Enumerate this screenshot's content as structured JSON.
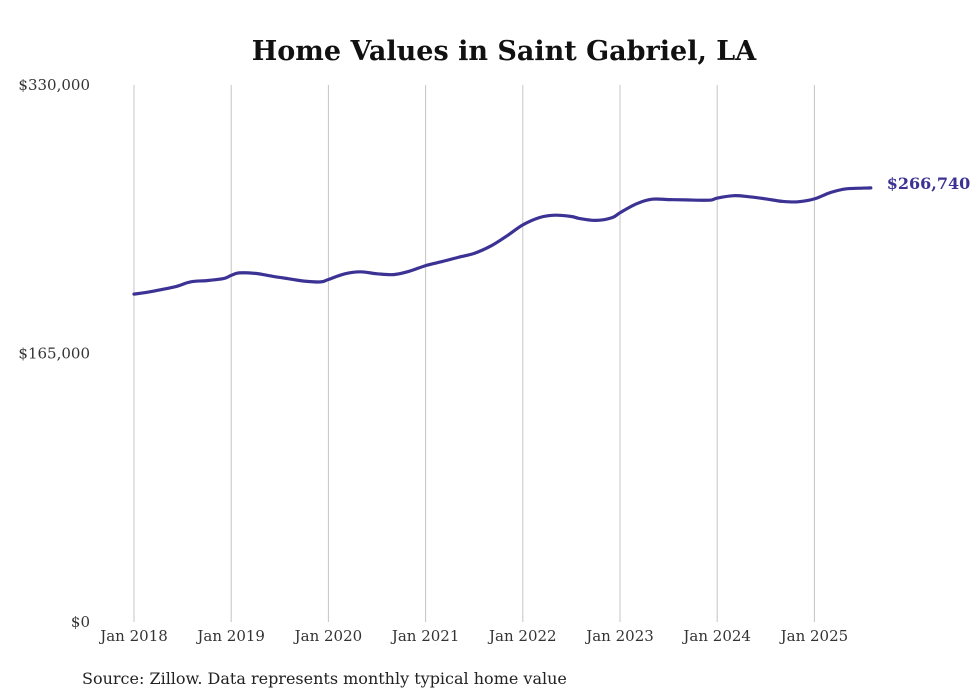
{
  "chart_data": {
    "type": "line",
    "title": "Home Values in Saint Gabriel, LA",
    "xlabel": "",
    "ylabel": "",
    "ylim": [
      0,
      330000
    ],
    "yticks": [
      "$330,000",
      "$165,000",
      "$0"
    ],
    "ytick_values": [
      330000,
      165000,
      0
    ],
    "xticks": [
      "Jan 2018",
      "Jan 2019",
      "Jan 2020",
      "Jan 2021",
      "Jan 2022",
      "Jan 2023",
      "Jan 2024",
      "Jan 2025"
    ],
    "xtick_values": [
      2018,
      2019,
      2020,
      2021,
      2022,
      2023,
      2024,
      2025
    ],
    "grid": "vertical",
    "series": [
      {
        "color": "#3b3294",
        "points": [
          [
            2018.0,
            201500
          ],
          [
            2018.17,
            203000
          ],
          [
            2018.42,
            206000
          ],
          [
            2018.58,
            209000
          ],
          [
            2018.75,
            209800
          ],
          [
            2018.92,
            211000
          ],
          [
            2019.0,
            213000
          ],
          [
            2019.08,
            214500
          ],
          [
            2019.25,
            214200
          ],
          [
            2019.42,
            212500
          ],
          [
            2019.58,
            211000
          ],
          [
            2019.75,
            209500
          ],
          [
            2019.92,
            209000
          ],
          [
            2020.0,
            210500
          ],
          [
            2020.17,
            214000
          ],
          [
            2020.33,
            215200
          ],
          [
            2020.5,
            214000
          ],
          [
            2020.67,
            213500
          ],
          [
            2020.83,
            215500
          ],
          [
            2021.0,
            219000
          ],
          [
            2021.17,
            221500
          ],
          [
            2021.33,
            224000
          ],
          [
            2021.5,
            226500
          ],
          [
            2021.67,
            231000
          ],
          [
            2021.83,
            237000
          ],
          [
            2022.0,
            244000
          ],
          [
            2022.17,
            248500
          ],
          [
            2022.33,
            250000
          ],
          [
            2022.5,
            249200
          ],
          [
            2022.58,
            248000
          ],
          [
            2022.75,
            246800
          ],
          [
            2022.92,
            248500
          ],
          [
            2023.0,
            251500
          ],
          [
            2023.17,
            257000
          ],
          [
            2023.33,
            259800
          ],
          [
            2023.5,
            259600
          ],
          [
            2023.67,
            259400
          ],
          [
            2023.92,
            259200
          ],
          [
            2024.0,
            260500
          ],
          [
            2024.17,
            262000
          ],
          [
            2024.33,
            261300
          ],
          [
            2024.5,
            260000
          ],
          [
            2024.67,
            258500
          ],
          [
            2024.83,
            258200
          ],
          [
            2025.0,
            260000
          ],
          [
            2025.17,
            264000
          ],
          [
            2025.33,
            266200
          ],
          [
            2025.58,
            266740
          ]
        ],
        "end_label": "$266,740"
      }
    ]
  },
  "source": "Source: Zillow. Data represents monthly typical home value"
}
